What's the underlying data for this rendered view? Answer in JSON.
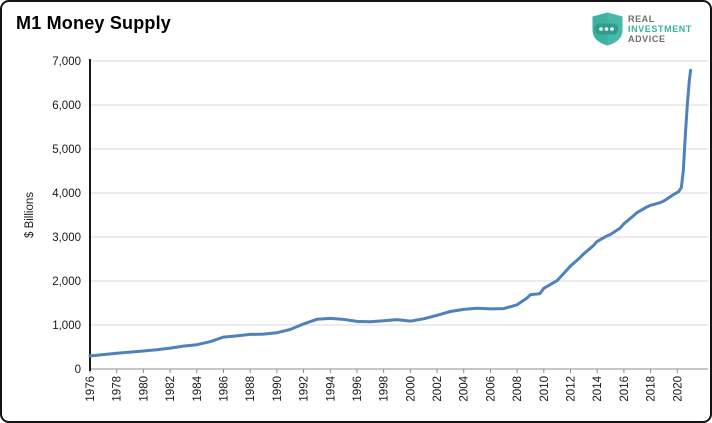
{
  "page": {
    "title": "M1 Money Supply"
  },
  "logo": {
    "name": "real-investment-advice-logo",
    "line1": "REAL",
    "line2": "INVESTMENT",
    "line3": "ADVICE",
    "teal": "#3bb2a0",
    "teal_light": "#54c0ae",
    "band": "#2d9c8b",
    "gray": "#6d6e71"
  },
  "chart_data": {
    "type": "line",
    "title": "M1 Money Supply",
    "xlabel": "",
    "ylabel": "$ Billions",
    "legend": "none",
    "grid": "horizontal",
    "grid_color": "#d9d9d9",
    "line_color": "#4f81bd",
    "line_width": 3,
    "axis_color_left": "#1a1a1a",
    "axis_color_bottom": "#8c8c8c",
    "tick_label_color": "#1a1a1a",
    "ylim": [
      0,
      7000
    ],
    "xlim": [
      1976,
      2022.3
    ],
    "y_ticks": [
      {
        "value": 0,
        "label": "0"
      },
      {
        "value": 1000,
        "label": "1,000"
      },
      {
        "value": 2000,
        "label": "2,000"
      },
      {
        "value": 3000,
        "label": "3,000"
      },
      {
        "value": 4000,
        "label": "4,000"
      },
      {
        "value": 5000,
        "label": "5,000"
      },
      {
        "value": 6000,
        "label": "6,000"
      },
      {
        "value": 7000,
        "label": "7,000"
      }
    ],
    "x_ticks": [
      1976,
      1978,
      1980,
      1982,
      1984,
      1986,
      1988,
      1990,
      1992,
      1994,
      1996,
      1998,
      2000,
      2002,
      2004,
      2006,
      2008,
      2010,
      2012,
      2014,
      2016,
      2018,
      2020
    ],
    "series": [
      {
        "name": "M1 Money Supply ($ Billions)",
        "points": [
          [
            1976,
            298
          ],
          [
            1977,
            328
          ],
          [
            1978,
            357
          ],
          [
            1979,
            383
          ],
          [
            1980,
            409
          ],
          [
            1981,
            437
          ],
          [
            1982,
            475
          ],
          [
            1983,
            521
          ],
          [
            1984,
            552
          ],
          [
            1985,
            620
          ],
          [
            1986,
            724
          ],
          [
            1987,
            752
          ],
          [
            1988,
            786
          ],
          [
            1989,
            794
          ],
          [
            1990,
            825
          ],
          [
            1991,
            897
          ],
          [
            1992,
            1024
          ],
          [
            1993,
            1130
          ],
          [
            1994,
            1150
          ],
          [
            1995,
            1127
          ],
          [
            1996,
            1081
          ],
          [
            1997,
            1072
          ],
          [
            1998,
            1095
          ],
          [
            1999,
            1122
          ],
          [
            2000,
            1088
          ],
          [
            2001,
            1140
          ],
          [
            2002,
            1220
          ],
          [
            2003,
            1306
          ],
          [
            2004,
            1355
          ],
          [
            2005,
            1382
          ],
          [
            2006,
            1367
          ],
          [
            2007,
            1373
          ],
          [
            2008,
            1460
          ],
          [
            2008.7,
            1605
          ],
          [
            2009,
            1690
          ],
          [
            2009.7,
            1712
          ],
          [
            2010,
            1835
          ],
          [
            2011,
            2010
          ],
          [
            2011.7,
            2240
          ],
          [
            2012,
            2340
          ],
          [
            2012.7,
            2530
          ],
          [
            2013,
            2620
          ],
          [
            2013.7,
            2800
          ],
          [
            2014,
            2900
          ],
          [
            2014.7,
            3020
          ],
          [
            2015,
            3060
          ],
          [
            2015.7,
            3200
          ],
          [
            2016,
            3300
          ],
          [
            2016.7,
            3480
          ],
          [
            2017,
            3560
          ],
          [
            2017.7,
            3680
          ],
          [
            2018,
            3720
          ],
          [
            2018.7,
            3780
          ],
          [
            2019,
            3820
          ],
          [
            2019.5,
            3920
          ],
          [
            2019.8,
            3980
          ],
          [
            2020.1,
            4030
          ],
          [
            2020.3,
            4120
          ],
          [
            2020.45,
            4500
          ],
          [
            2020.6,
            5300
          ],
          [
            2020.75,
            6000
          ],
          [
            2020.9,
            6550
          ],
          [
            2021,
            6790
          ]
        ]
      }
    ]
  }
}
